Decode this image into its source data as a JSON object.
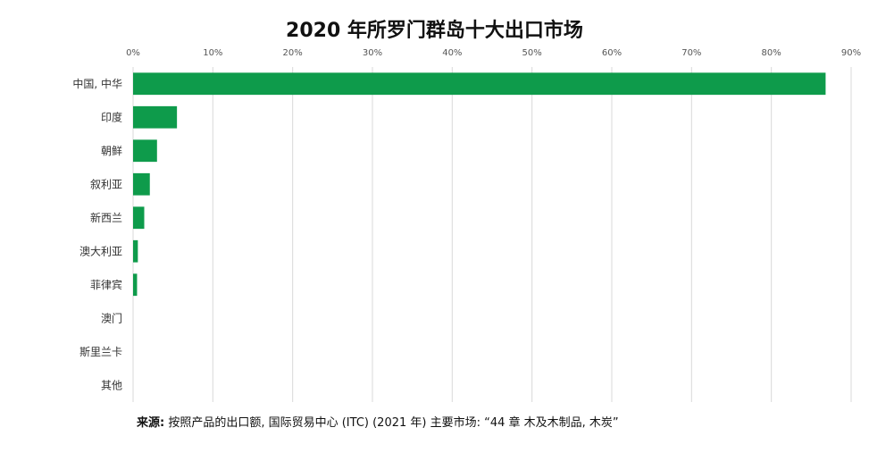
{
  "chart_data": {
    "type": "bar",
    "orientation": "horizontal",
    "title": "2020 年所罗门群岛十大出口市场",
    "categories": [
      "中国, 中华",
      "印度",
      "朝鲜",
      "叙利亚",
      "新西兰",
      "澳大利亚",
      "菲律宾",
      "澳门",
      "斯里兰卡",
      "其他"
    ],
    "values": [
      86.8,
      5.5,
      3.0,
      2.1,
      1.4,
      0.6,
      0.5,
      0.0,
      0.0,
      0.0
    ],
    "xlim": [
      0,
      90
    ],
    "xticks": [
      0,
      10,
      20,
      30,
      40,
      50,
      60,
      70,
      80,
      90
    ],
    "tick_suffix": "%",
    "axis_position": "top",
    "grid": true,
    "bar_color": "#0e9b4b"
  },
  "source": {
    "label": "来源:",
    "text": " 按照产品的出口额, 国际贸易中心 (ITC) (2021 年) 主要市场: “44 章 木及木制品, 木炭”"
  }
}
